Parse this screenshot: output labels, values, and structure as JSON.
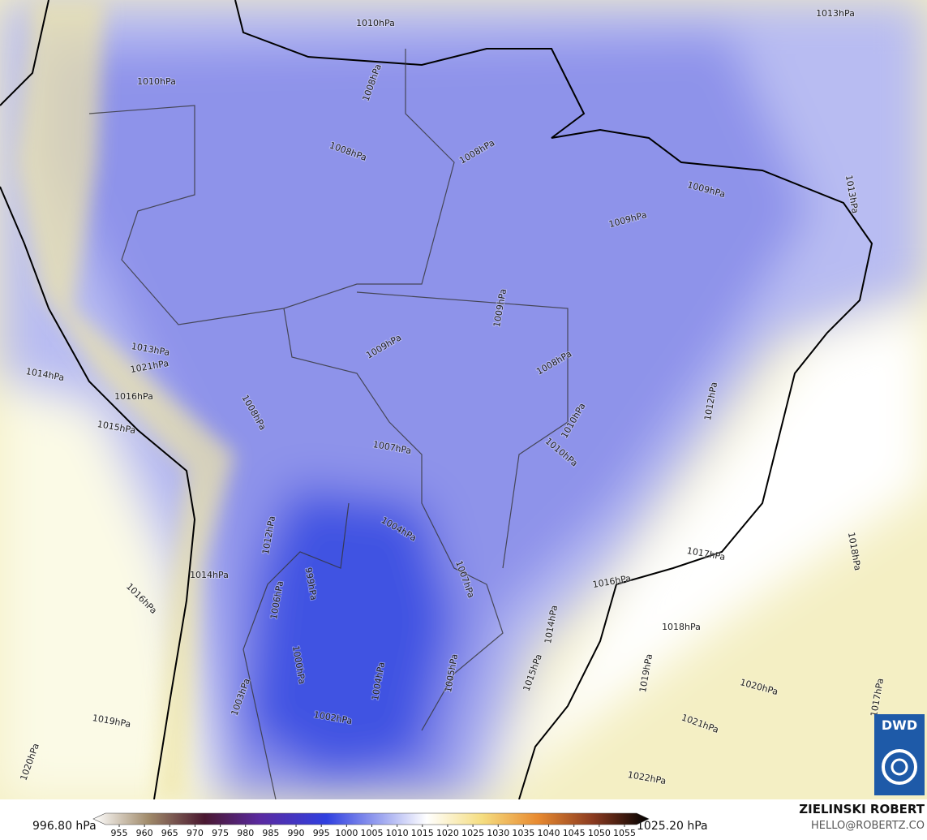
{
  "map": {
    "contour_labels": [
      "1013hPa",
      "1010hPa",
      "1010hPa",
      "1008hPa",
      "1008hPa",
      "1008hPa",
      "1009hPa",
      "1009hPa",
      "1013hPa",
      "1009hPa",
      "1009hPa",
      "1008hPa",
      "1010hPa",
      "1010hPa",
      "1007hPa",
      "1012hPa",
      "1014hPa",
      "1015hPa",
      "1013hPa",
      "1021hPa",
      "1016hPa",
      "1008hPa",
      "1004hPa",
      "1007hPa",
      "1012hPa",
      "1014hPa",
      "1017hPa",
      "1016hPa",
      "1018hPa",
      "1018hPa",
      "1016hPa",
      "1014hPa",
      "1019hPa",
      "1020hPa",
      "1021hPa",
      "1022hPa",
      "1017hPa",
      "1019hPa",
      "1020hPa",
      "1015hPa",
      "1005hPa",
      "1004hPa",
      "1002hPa",
      "1003hPa",
      "1000hPa",
      "999hPa",
      "1006hPa"
    ],
    "colorbar": {
      "min_label": "996.80 hPa",
      "max_label": "1025.20 hPa",
      "ticks": [
        955,
        960,
        965,
        970,
        975,
        980,
        985,
        990,
        995,
        1000,
        1005,
        1010,
        1015,
        1020,
        1025,
        1030,
        1035,
        1040,
        1045,
        1050,
        1055
      ]
    },
    "credit": {
      "author": "ZIELINSKI ROBERT",
      "contact": "HELLO@ROBERTZ.CO",
      "logo": "DWD"
    }
  }
}
